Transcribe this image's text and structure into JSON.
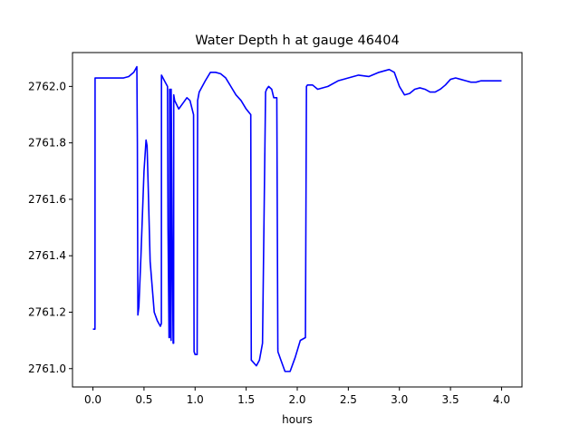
{
  "chart_data": {
    "type": "line",
    "title": "Water Depth h at gauge 46404",
    "xlabel": "hours",
    "ylabel": "",
    "xlim": [
      -0.2,
      4.2
    ],
    "ylim": [
      2760.935,
      2762.12
    ],
    "xticks": [
      0.0,
      0.5,
      1.0,
      1.5,
      2.0,
      2.5,
      3.0,
      3.5,
      4.0
    ],
    "xtick_labels": [
      "0.0",
      "0.5",
      "1.0",
      "1.5",
      "2.0",
      "2.5",
      "3.0",
      "3.5",
      "4.0"
    ],
    "yticks": [
      2761.0,
      2761.2,
      2761.4,
      2761.6,
      2761.8,
      2762.0
    ],
    "ytick_labels": [
      "2761.0",
      "2761.2",
      "2761.4",
      "2761.6",
      "2761.8",
      "2762.0"
    ],
    "grid": false,
    "series": [
      {
        "color": "#0000ff",
        "x": [
          0.0,
          0.02,
          0.021,
          0.1,
          0.2,
          0.3,
          0.35,
          0.4,
          0.43,
          0.435,
          0.44,
          0.45,
          0.47,
          0.5,
          0.52,
          0.53,
          0.54,
          0.56,
          0.6,
          0.63,
          0.66,
          0.67,
          0.671,
          0.7,
          0.73,
          0.735,
          0.745,
          0.75,
          0.751,
          0.76,
          0.765,
          0.766,
          0.775,
          0.785,
          0.79,
          0.791,
          0.8,
          0.84,
          0.88,
          0.92,
          0.95,
          0.985,
          0.99,
          1.0,
          1.02,
          1.025,
          1.04,
          1.1,
          1.15,
          1.2,
          1.25,
          1.3,
          1.35,
          1.4,
          1.45,
          1.5,
          1.545,
          1.55,
          1.551,
          1.6,
          1.63,
          1.66,
          1.69,
          1.7,
          1.72,
          1.75,
          1.77,
          1.8,
          1.81,
          1.811,
          1.84,
          1.88,
          1.93,
          1.98,
          2.03,
          2.08,
          2.09,
          2.1,
          2.15,
          2.2,
          2.3,
          2.4,
          2.5,
          2.6,
          2.7,
          2.8,
          2.9,
          2.95,
          3.0,
          3.05,
          3.1,
          3.15,
          3.2,
          3.25,
          3.3,
          3.35,
          3.4,
          3.45,
          3.5,
          3.55,
          3.6,
          3.65,
          3.7,
          3.75,
          3.8,
          3.9,
          4.0
        ],
        "y": [
          2761.14,
          2761.14,
          2762.03,
          2762.03,
          2762.03,
          2762.03,
          2762.035,
          2762.05,
          2762.07,
          2761.8,
          2761.19,
          2761.22,
          2761.4,
          2761.7,
          2761.81,
          2761.79,
          2761.66,
          2761.38,
          2761.2,
          2761.17,
          2761.15,
          2761.16,
          2762.04,
          2762.02,
          2762.0,
          2761.5,
          2761.11,
          2761.11,
          2761.99,
          2761.6,
          2761.1,
          2761.99,
          2761.5,
          2761.09,
          2761.09,
          2761.97,
          2761.95,
          2761.92,
          2761.94,
          2761.96,
          2761.95,
          2761.9,
          2761.06,
          2761.05,
          2761.05,
          2761.95,
          2761.98,
          2762.02,
          2762.05,
          2762.05,
          2762.045,
          2762.03,
          2762.0,
          2761.97,
          2761.95,
          2761.92,
          2761.9,
          2761.03,
          2761.03,
          2761.01,
          2761.03,
          2761.09,
          2761.98,
          2761.99,
          2762.0,
          2761.99,
          2761.96,
          2761.96,
          2761.07,
          2761.06,
          2761.03,
          2760.99,
          2760.99,
          2761.04,
          2761.1,
          2761.11,
          2762.0,
          2762.005,
          2762.005,
          2761.99,
          2762.0,
          2762.02,
          2762.03,
          2762.04,
          2762.035,
          2762.05,
          2762.06,
          2762.05,
          2762.0,
          2761.97,
          2761.975,
          2761.99,
          2761.995,
          2761.99,
          2761.98,
          2761.98,
          2761.99,
          2762.005,
          2762.025,
          2762.03,
          2762.025,
          2762.02,
          2762.015,
          2762.015,
          2762.02,
          2762.02,
          2762.02
        ]
      }
    ]
  }
}
